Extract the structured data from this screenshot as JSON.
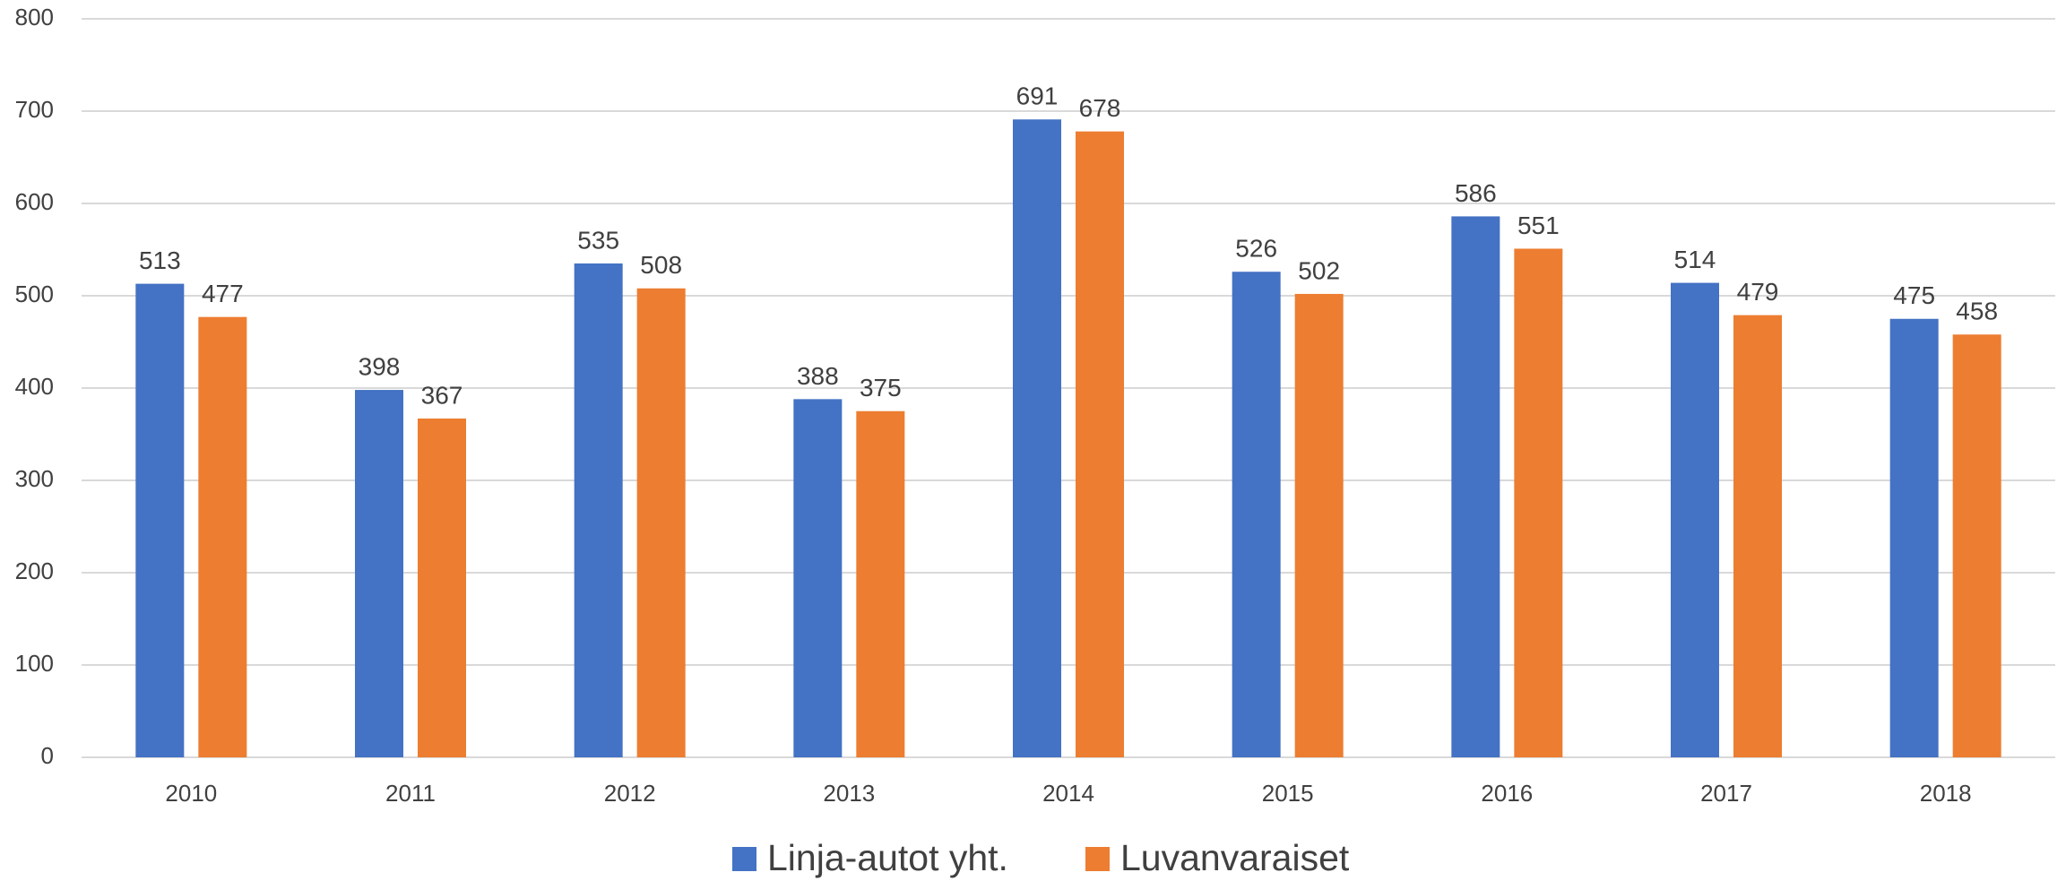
{
  "chart_data": {
    "type": "bar",
    "categories": [
      "2010",
      "2011",
      "2012",
      "2013",
      "2014",
      "2015",
      "2016",
      "2017",
      "2018"
    ],
    "series": [
      {
        "name": "Linja-autot yht.",
        "color": "#4472c4",
        "values": [
          513,
          398,
          535,
          388,
          691,
          526,
          586,
          514,
          475
        ]
      },
      {
        "name": "Luvanvaraiset",
        "color": "#ed7d31",
        "values": [
          477,
          367,
          508,
          375,
          678,
          502,
          551,
          479,
          458
        ]
      }
    ],
    "ylim": [
      0,
      800
    ],
    "yticks": [
      0,
      100,
      200,
      300,
      400,
      500,
      600,
      700,
      800
    ],
    "grid": true,
    "legend": "bottom"
  }
}
